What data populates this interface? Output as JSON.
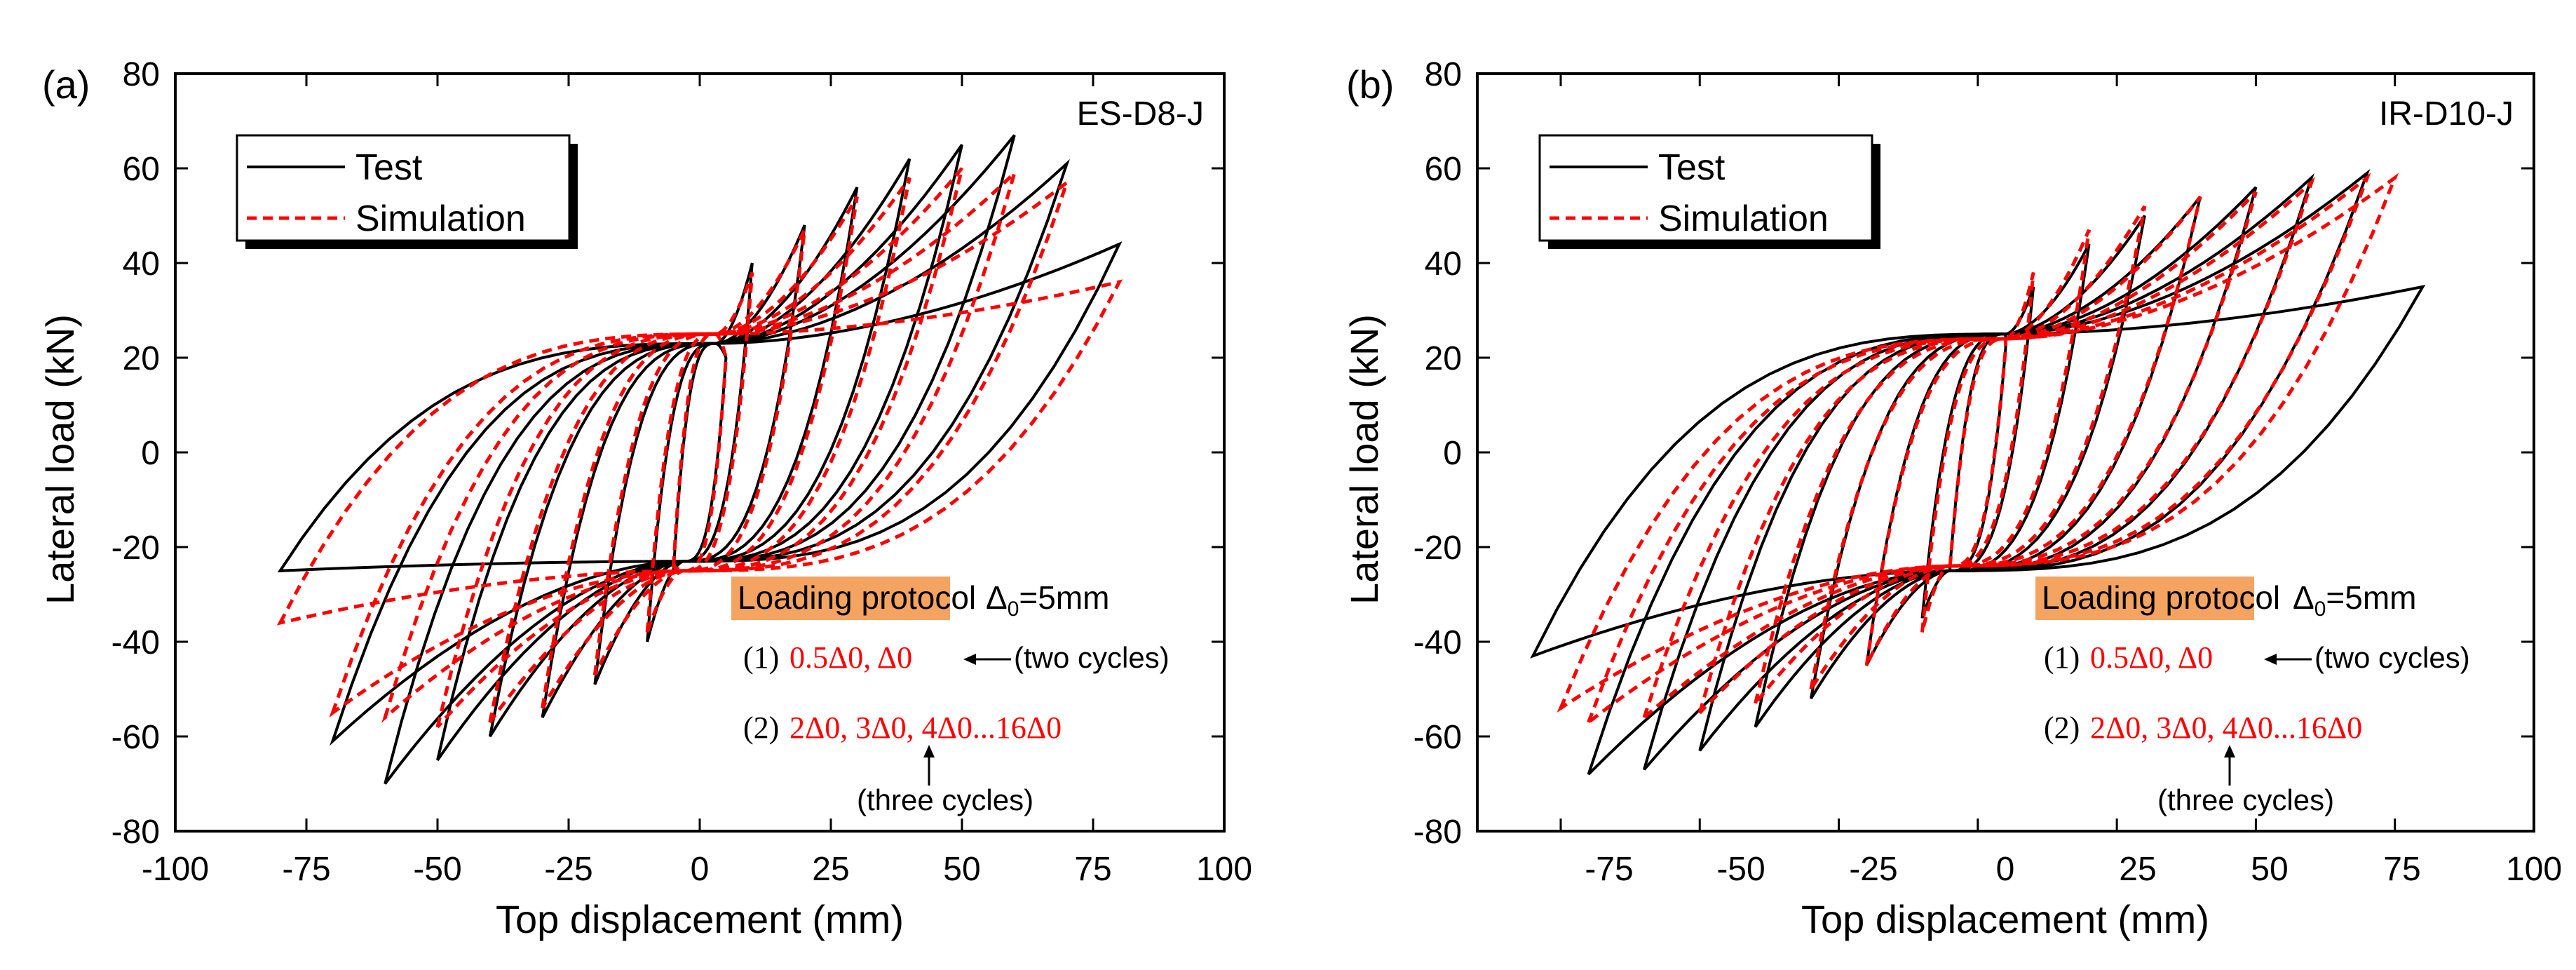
{
  "colors": {
    "test": "#000000",
    "simulation": "#ff0000",
    "protocol_highlight": "#f4a460"
  },
  "chart_data": [
    {
      "type": "line",
      "panel_label": "(a)",
      "specimen": "ES-D8-J",
      "xlabel": "Top displacement (mm)",
      "ylabel": "Lateral load (kN)",
      "xlim": [
        -100,
        100
      ],
      "ylim": [
        -80,
        80
      ],
      "xticks": [
        "-100",
        "-75",
        "-50",
        "-25",
        "0",
        "25",
        "50",
        "75",
        "100"
      ],
      "yticks": [
        "80",
        "60",
        "40",
        "20",
        "0",
        "-20",
        "-40",
        "-60",
        "-80"
      ],
      "legend": {
        "test": "Test",
        "simulation": "Simulation",
        "position": "top-left"
      },
      "protocol": {
        "title": "Loading protocol",
        "delta_symbol": "Δ",
        "delta_sub": "0",
        "delta_value": "=5mm",
        "step1_num": "(1)",
        "step1_text": "0.5Δ0, Δ0",
        "step1_note": "(two cycles)",
        "step2_num": "(2)",
        "step2_text": "2Δ0, 3Δ0, 4Δ0...16Δ0",
        "step2_note": "(three cycles)"
      },
      "series": [
        {
          "name": "Test",
          "style": "solid",
          "amplitudes": [
            5,
            10,
            20,
            30,
            40,
            50,
            60,
            70,
            80
          ],
          "positive_peaks": [
            20,
            40,
            48,
            56,
            62,
            65,
            67,
            61,
            44
          ],
          "negative_peaks": [
            -25,
            -40,
            -49,
            -56,
            -60,
            -65,
            -70,
            -61,
            -25
          ],
          "pinching_load": 23,
          "pinching_displacement": 3
        },
        {
          "name": "Simulation",
          "style": "dashed",
          "amplitudes": [
            5,
            10,
            20,
            30,
            40,
            50,
            60,
            70,
            80
          ],
          "positive_peaks": [
            20,
            38,
            47,
            54,
            58,
            60,
            59,
            57,
            36
          ],
          "negative_peaks": [
            -24,
            -38,
            -47,
            -54,
            -57,
            -58,
            -56,
            -55,
            -36
          ],
          "pinching_load": 25,
          "pinching_displacement": 3
        }
      ]
    },
    {
      "type": "line",
      "panel_label": "(b)",
      "specimen": "IR-D10-J",
      "xlabel": "Top displacement (mm)",
      "ylabel": "Lateral load (kN)",
      "xlim": [
        -90,
        100
      ],
      "ylim": [
        -80,
        80
      ],
      "xticks": [
        "-75",
        "-50",
        "-25",
        "0",
        "25",
        "50",
        "75",
        "100"
      ],
      "yticks": [
        "80",
        "60",
        "40",
        "20",
        "0",
        "-20",
        "-40",
        "-60",
        "-80"
      ],
      "legend": {
        "test": "Test",
        "simulation": "Simulation",
        "position": "top-left"
      },
      "protocol": {
        "title": "Loading protocol",
        "delta_symbol": "Δ",
        "delta_sub": "0",
        "delta_value": "=5mm",
        "step1_num": "(1)",
        "step1_text": "0.5Δ0, Δ0",
        "step1_note": "(two cycles)",
        "step2_num": "(2)",
        "step2_text": "2Δ0, 3Δ0, 4Δ0...16Δ0",
        "step2_note": "(three cycles)"
      },
      "series": [
        {
          "name": "Test",
          "style": "solid",
          "amplitudes": [
            5,
            10,
            20,
            30,
            40,
            50,
            60,
            70,
            80
          ],
          "positive_peaks": [
            22,
            35,
            44,
            50,
            54,
            56,
            58,
            59,
            35
          ],
          "negative_peaks": [
            -24,
            -35,
            -45,
            -52,
            -58,
            -63,
            -67,
            -68,
            -43
          ],
          "pinching_load": 25,
          "pinching_displacement": 5
        },
        {
          "name": "Simulation",
          "style": "dashed",
          "amplitudes": [
            5,
            10,
            20,
            30,
            40,
            50,
            60,
            70,
            75
          ],
          "positive_peaks": [
            22,
            38,
            47,
            52,
            54,
            55,
            57,
            58,
            58
          ],
          "negative_peaks": [
            -24,
            -38,
            -45,
            -50,
            -53,
            -55,
            -56,
            -57,
            -54
          ],
          "pinching_load": 24,
          "pinching_displacement": 5
        }
      ]
    }
  ]
}
